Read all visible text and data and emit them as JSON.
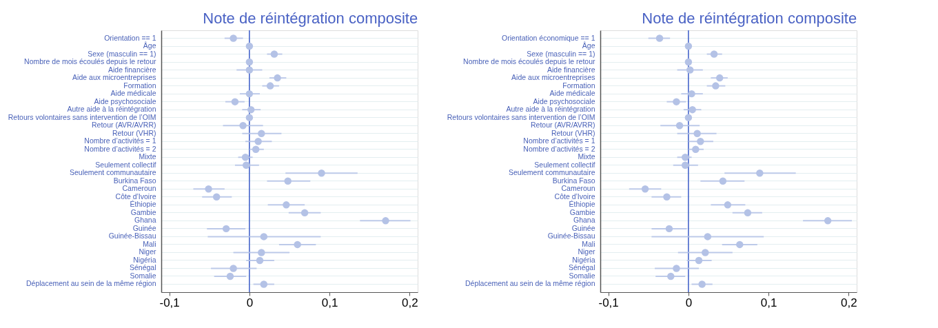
{
  "chart_data": [
    {
      "type": "scatter",
      "orientation": "horizontal",
      "title": "Note de réintégration composite",
      "grid": "y",
      "marker": "circle",
      "categories": [
        "Orientation == 1",
        "Âge",
        "Sexe (masculin == 1)",
        "Nombre de mois écoulés depuis le retour",
        "Aide financière",
        "Aide aux microentreprises",
        "Formation",
        "Aide médicale",
        "Aide psychosociale",
        "Autre aide à la réintégration",
        "Retours volontaires sans intervention de l’OIM",
        "Retour (AVR/AVRR)",
        "Retour (VHR)",
        "Nombre d’activités = 1",
        "Nombre d’activités = 2",
        "Mixte",
        "Seulement collectif",
        "Seulement communautaire",
        "Burkina Faso",
        "Cameroun",
        "Côte d’Ivoire",
        "Éthiopie",
        "Gambie",
        "Ghana",
        "Guinée",
        "Guinée-Bissau",
        "Mali",
        "Niger",
        "Nigéria",
        "Sénégal",
        "Somalie",
        "Déplacement au sein de la même région"
      ],
      "series": [
        {
          "color": "#b4c2e6",
          "values": [
            -0.02,
            0,
            0.031,
            0,
            0,
            0.035,
            0.026,
            0,
            -0.018,
            0.002,
            0,
            -0.008,
            0.015,
            0.011,
            0.008,
            -0.005,
            -0.004,
            0.09,
            0.048,
            -0.051,
            -0.041,
            0.046,
            0.069,
            0.17,
            -0.029,
            0.018,
            0.06,
            0.015,
            0.013,
            -0.02,
            -0.024,
            0.018
          ],
          "errors": [
            [
              -0.031,
              -0.008
            ],
            null,
            [
              0.022,
              0.041
            ],
            null,
            [
              -0.016,
              0.016
            ],
            [
              0.025,
              0.046
            ],
            [
              0.016,
              0.037
            ],
            [
              -0.012,
              0.013
            ],
            [
              -0.03,
              -0.006
            ],
            [
              -0.009,
              0.014
            ],
            null,
            [
              -0.033,
              0.017
            ],
            [
              -0.009,
              0.04
            ],
            [
              -0.005,
              0.028
            ],
            [
              0,
              0.018
            ],
            [
              -0.014,
              0.004
            ],
            [
              -0.018,
              0.012
            ],
            [
              0.045,
              0.135
            ],
            [
              0.022,
              0.076
            ],
            [
              -0.07,
              -0.031
            ],
            [
              -0.059,
              -0.022
            ],
            [
              0.023,
              0.069
            ],
            [
              0.049,
              0.089
            ],
            [
              0.138,
              0.201
            ],
            [
              -0.053,
              -0.005
            ],
            [
              -0.052,
              0.089
            ],
            [
              0.037,
              0.083
            ],
            [
              -0.02,
              0.05
            ],
            [
              -0.004,
              0.031
            ],
            [
              -0.048,
              0.009
            ],
            [
              -0.044,
              -0.004
            ],
            [
              0.005,
              0.031
            ]
          ]
        }
      ],
      "xlim": [
        -0.11,
        0.21
      ],
      "xticks": [
        {
          "value": -0.1,
          "label": "-0,1"
        },
        0,
        {
          "value": 0.1,
          "label": "0,1"
        },
        {
          "value": 0.2,
          "label": "0,2"
        }
      ],
      "ref_lines": [
        {
          "axis": "x",
          "value": 0,
          "color": "#3a5bc7"
        }
      ]
    },
    {
      "type": "scatter",
      "orientation": "horizontal",
      "title": "Note de réintégration composite",
      "grid": "y",
      "marker": "circle",
      "categories": [
        "Orientation économique == 1",
        "Âge",
        "Sexe (masculin == 1)",
        "Nombre de mois écoulés depuis le retour",
        "Aide financière",
        "Aide aux microentreprises",
        "Formation",
        "Aide médicale",
        "Aide psychosociale",
        "Autre aide à la réintégration",
        "Retours volontaires sans intervention de l’OIM",
        "Retour (AVR/AVRR)",
        "Retour (VHR)",
        "Nombre d’activités = 1",
        "Nombre d’activités = 2",
        "Mixte",
        "Seulement collectif",
        "Seulement communautaire",
        "Burkina Faso",
        "Cameroun",
        "Côte d’Ivoire",
        "Éthiopie",
        "Gambie",
        "Ghana",
        "Guinée",
        "Guinée-Bissau",
        "Mali",
        "Niger",
        "Nigéria",
        "Sénégal",
        "Somalie",
        "Déplacement au sein de la même région"
      ],
      "series": [
        {
          "color": "#b4c2e6",
          "values": [
            -0.036,
            0,
            0.032,
            0,
            0.002,
            0.039,
            0.034,
            0.004,
            -0.015,
            0.005,
            0,
            -0.011,
            0.011,
            0.015,
            0.009,
            -0.004,
            -0.004,
            0.089,
            0.043,
            -0.054,
            -0.027,
            0.049,
            0.074,
            0.174,
            -0.024,
            0.024,
            0.064,
            0.021,
            0.013,
            -0.015,
            -0.022,
            0.017
          ],
          "errors": [
            [
              -0.05,
              -0.023
            ],
            null,
            [
              0.023,
              0.042
            ],
            null,
            [
              -0.014,
              0.018
            ],
            [
              0.028,
              0.049
            ],
            [
              0.023,
              0.046
            ],
            [
              -0.009,
              0.018
            ],
            [
              -0.027,
              -0.003
            ],
            [
              -0.006,
              0.016
            ],
            null,
            [
              -0.035,
              0.014
            ],
            [
              -0.014,
              0.035
            ],
            [
              0,
              0.031
            ],
            [
              0,
              0.019
            ],
            [
              -0.014,
              0.004
            ],
            [
              -0.019,
              0.012
            ],
            [
              0.045,
              0.134
            ],
            [
              0.015,
              0.07
            ],
            [
              -0.074,
              -0.034
            ],
            [
              -0.046,
              -0.009
            ],
            [
              0.028,
              0.071
            ],
            [
              0.055,
              0.092
            ],
            [
              0.143,
              0.204
            ],
            [
              -0.046,
              -0.002
            ],
            [
              -0.046,
              0.094
            ],
            [
              0.042,
              0.086
            ],
            [
              -0.013,
              0.055
            ],
            [
              -0.002,
              0.029
            ],
            [
              -0.042,
              0.013
            ],
            [
              -0.041,
              -0.004
            ],
            [
              0.004,
              0.03
            ]
          ]
        }
      ],
      "xlim": [
        -0.11,
        0.21
      ],
      "xticks": [
        {
          "value": -0.1,
          "label": "-0,1"
        },
        0,
        {
          "value": 0.1,
          "label": "0,1"
        },
        {
          "value": 0.2,
          "label": "0,2"
        }
      ],
      "ref_lines": [
        {
          "axis": "x",
          "value": 0,
          "color": "#3a5bc7"
        }
      ]
    }
  ]
}
